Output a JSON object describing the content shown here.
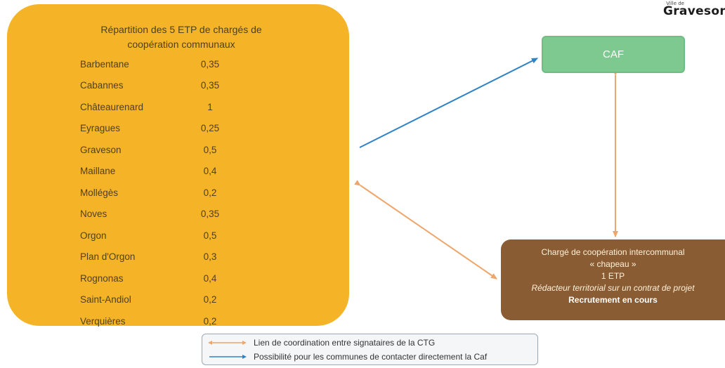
{
  "logo": {
    "small_text": "Ville de",
    "name": "Graveson"
  },
  "etp_box": {
    "title_line1": "Répartition des 5 ETP de chargés de",
    "title_line2": "coopération communaux",
    "rows": [
      {
        "commune": "Barbentane",
        "value": "0,35"
      },
      {
        "commune": "Cabannes",
        "value": "0,35"
      },
      {
        "commune": "Châteaurenard",
        "value": "1"
      },
      {
        "commune": "Eyragues",
        "value": "0,25"
      },
      {
        "commune": "Graveson",
        "value": "0,5"
      },
      {
        "commune": "Maillane",
        "value": "0,4"
      },
      {
        "commune": "Mollégès",
        "value": "0,2"
      },
      {
        "commune": "Noves",
        "value": "0,35"
      },
      {
        "commune": "Orgon",
        "value": "0,5"
      },
      {
        "commune": "Plan d'Orgon",
        "value": "0,3"
      },
      {
        "commune": "Rognonas",
        "value": "0,4"
      },
      {
        "commune": "Saint-Andiol",
        "value": "0,2"
      },
      {
        "commune": "Verquières",
        "value": "0,2"
      }
    ]
  },
  "caf": {
    "label": "CAF"
  },
  "charge": {
    "line1": "Chargé de coopération intercommunal",
    "line2": "« chapeau »",
    "line3": "1 ETP",
    "line4": "Rédacteur territorial sur un contrat de projet",
    "line5": "Recrutement en cours"
  },
  "legend": {
    "coordination": "Lien de coordination entre signataires de la CTG",
    "direct_contact": "Possibilité pour les communes de contacter directement la Caf"
  },
  "colors": {
    "etp_box": "#f5b427",
    "caf_box": "#7dc98f",
    "charge_box": "#8a5c34",
    "coordination_arrow": "#eda66c",
    "contact_arrow": "#2e82c5"
  }
}
